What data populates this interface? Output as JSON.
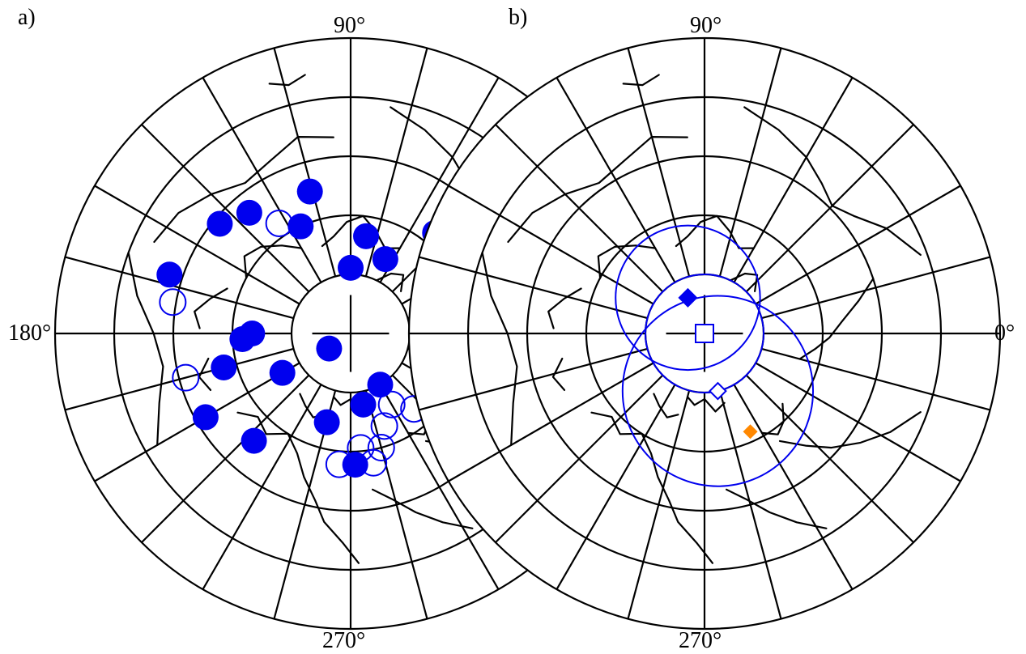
{
  "panels": [
    {
      "id": "a",
      "panel_label": "a)",
      "lon_labels": {
        "top": "90°",
        "left": "180°",
        "bottom": "270°"
      },
      "colors": {
        "filled": "#0000ee",
        "open": "#0000ee"
      },
      "markers": {
        "filled_circles": [
          [
            210,
            51
          ],
          [
            215,
            8
          ],
          [
            210,
            24
          ],
          [
            228,
            44
          ],
          [
            162,
            58
          ],
          [
            130,
            48
          ],
          [
            115,
            36
          ],
          [
            90,
            20
          ],
          [
            106,
            45
          ],
          [
            81,
            30
          ],
          [
            65,
            25
          ],
          [
            50,
            40
          ],
          [
            47,
            50
          ],
          [
            30,
            40
          ],
          [
            15,
            45
          ],
          [
            345,
            48
          ],
          [
            300,
            18
          ],
          [
            255,
            28
          ],
          [
            180,
            30
          ],
          [
            195,
            40
          ],
          [
            183,
            33
          ],
          [
            140,
            52
          ],
          [
            280,
            22
          ],
          [
            272,
            40
          ]
        ],
        "open_circles": [
          [
            170,
            55
          ],
          [
            123,
            40
          ],
          [
            195,
            52
          ],
          [
            30,
            30
          ],
          [
            15,
            32
          ],
          [
            300,
            25
          ],
          [
            310,
            30
          ],
          [
            290,
            30
          ],
          [
            275,
            35
          ],
          [
            285,
            36
          ],
          [
            265,
            40
          ],
          [
            280,
            40
          ]
        ]
      }
    },
    {
      "id": "b",
      "panel_label": "b)",
      "lon_labels": {
        "top": "90°",
        "right": "0°",
        "bottom": "270°"
      },
      "colors": {
        "blue": "#0000ee",
        "orange": "#ff8800"
      },
      "markers": {
        "filled_diamond_blue": [
          115,
          12
        ],
        "open_square_blue": [
          0,
          0
        ],
        "open_diamond_blue": [
          283,
          18
        ],
        "filled_diamond_orange": [
          295,
          33
        ],
        "confidence_circles_blue": [
          [
            115,
            12,
            22
          ],
          [
            0,
            0,
            18
          ],
          [
            283,
            18,
            29
          ]
        ]
      }
    }
  ]
}
